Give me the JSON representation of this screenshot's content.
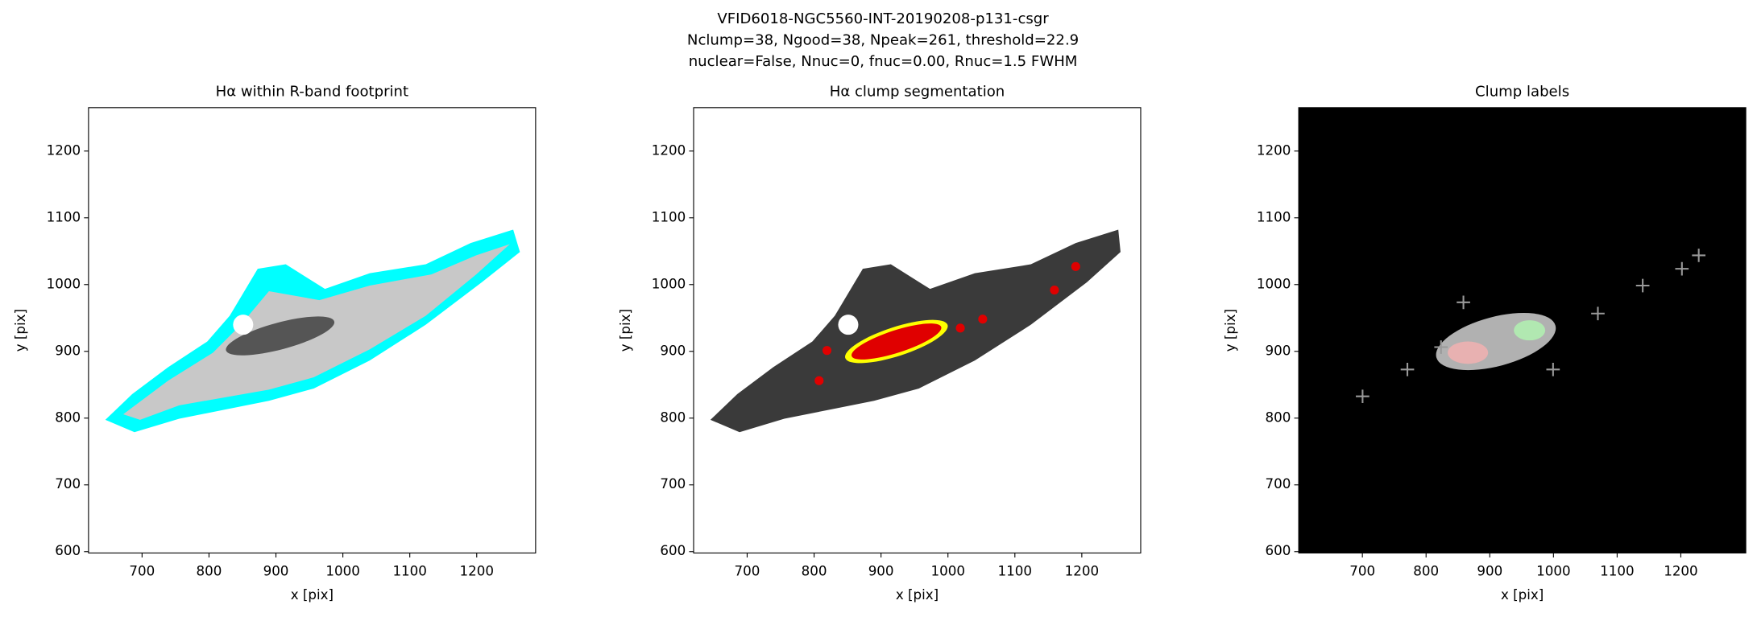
{
  "title_lines": [
    "VFID6018-NGC5560-INT-20190208-p131-csgr",
    "Nclump=38, Ngood=38, Npeak=261, threshold=22.9",
    "nuclear=False, Nnuc=0, fnuc=0.00, Rnuc=1.5 FWHM"
  ],
  "chart_data": [
    {
      "type": "image",
      "title": "Hα within R-band footprint",
      "xlabel": "x [pix]",
      "ylabel": "y [pix]",
      "xlim": [
        620,
        1288
      ],
      "ylim": [
        598,
        1265
      ],
      "xticks": [
        700,
        800,
        900,
        1000,
        1100,
        1200
      ],
      "yticks": [
        600,
        700,
        800,
        900,
        1000,
        1100,
        1200
      ]
    },
    {
      "type": "image",
      "title": "Hα clump segmentation",
      "xlabel": "x [pix]",
      "ylabel": "y [pix]",
      "xlim": [
        620,
        1288
      ],
      "ylim": [
        598,
        1265
      ],
      "xticks": [
        700,
        800,
        900,
        1000,
        1100,
        1200
      ],
      "yticks": [
        600,
        700,
        800,
        900,
        1000,
        1100,
        1200
      ]
    },
    {
      "type": "image",
      "title": "Clump labels",
      "xlabel": "x [pix]",
      "ylabel": "y [pix]",
      "xlim": [
        600,
        1302
      ],
      "ylim": [
        598,
        1265
      ],
      "xticks": [
        700,
        800,
        900,
        1000,
        1100,
        1200
      ],
      "yticks": [
        600,
        700,
        800,
        900,
        1000,
        1100,
        1200
      ]
    }
  ]
}
